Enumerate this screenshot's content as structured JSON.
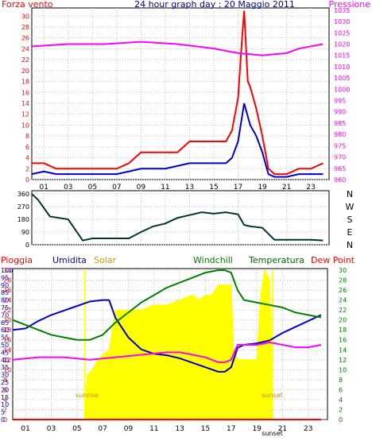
{
  "colors": {
    "wind": "#ff0000",
    "wind_avg": "#0000cc",
    "pressure": "#ff00ff",
    "direction": "#003333",
    "rain": "#ff0000",
    "humidity": "#0000cc",
    "solar": "#ffff00",
    "solar_text": "#cc9900",
    "windchill": "#008000",
    "temperature": "#006600",
    "dewpoint": "#ff00ff",
    "sun_text": "#cc8800",
    "grid": "#c0c0c0",
    "axis": "#000000"
  },
  "chart_data": [
    {
      "type": "line",
      "title": "24 hour graph day : 20 Maggio 2011",
      "left_label": "Forza vento",
      "right_label": "Pressione",
      "x_ticks": [
        "01",
        "03",
        "05",
        "07",
        "09",
        "11",
        "13",
        "15",
        "17",
        "19",
        "21",
        "23"
      ],
      "left_ticks": [
        "0",
        "2",
        "4",
        "6",
        "8",
        "10",
        "12",
        "14",
        "16",
        "18",
        "20",
        "22",
        "24",
        "26",
        "28",
        "30"
      ],
      "right_ticks": [
        "960",
        "965",
        "970",
        "975",
        "980",
        "985",
        "990",
        "995",
        "1000",
        "1005",
        "1010",
        "1015",
        "1020",
        "1025",
        "1030",
        "1035"
      ],
      "xlim": [
        0,
        24.5
      ],
      "ylim_left": [
        0,
        31.5
      ],
      "ylim_right": [
        960,
        1036
      ],
      "grid": true,
      "series": [
        {
          "x": [
            0,
            1,
            2,
            3,
            4,
            5,
            6,
            7,
            8,
            9,
            10,
            11,
            12,
            13,
            14,
            15,
            16,
            16.5,
            17,
            17.3,
            17.5,
            17.8,
            18,
            18.5,
            19,
            19.5,
            20,
            21,
            22,
            23,
            24
          ],
          "y": [
            3,
            3,
            2,
            2,
            2,
            2,
            2,
            2,
            3,
            5,
            5,
            5,
            5,
            7,
            7,
            7,
            7,
            9,
            15,
            25,
            31,
            18,
            17,
            13,
            8,
            2,
            1,
            1,
            2,
            2,
            3
          ]
        },
        {
          "x": [
            0,
            1,
            2,
            3,
            4,
            5,
            6,
            7,
            8,
            9,
            10,
            11,
            12,
            13,
            14,
            15,
            16,
            16.5,
            17,
            17.5,
            18,
            18.5,
            19,
            19.5,
            20,
            21,
            22,
            23,
            24
          ],
          "y": [
            1,
            1.5,
            1,
            1,
            1,
            1,
            1,
            1,
            1.5,
            2,
            2,
            2,
            2.5,
            3,
            3,
            3,
            3,
            4,
            7,
            14,
            10,
            8,
            5,
            1,
            0.5,
            0.5,
            1,
            1,
            1
          ]
        },
        {
          "x": [
            0,
            3,
            6,
            9,
            12,
            15,
            16,
            17,
            18,
            19,
            20,
            21,
            22,
            23,
            24
          ],
          "y": [
            1019,
            1020,
            1020,
            1021,
            1020,
            1018,
            1017,
            1016,
            1015.5,
            1015,
            1015.5,
            1016,
            1018,
            1019,
            1020
          ]
        }
      ]
    },
    {
      "type": "line",
      "right_label": [
        "N",
        "W",
        "S",
        "E",
        "N"
      ],
      "left_ticks": [
        "0",
        "90",
        "180",
        "270",
        "360"
      ],
      "ylim": [
        0,
        360
      ],
      "xlim": [
        0,
        24.5
      ],
      "series": [
        {
          "x": [
            0,
            0.5,
            1.5,
            3,
            3.8,
            4.2,
            5,
            6,
            8,
            9,
            10,
            11,
            12,
            13,
            14,
            15,
            16,
            17,
            17.5,
            18,
            19,
            20,
            21,
            22,
            23,
            24
          ],
          "y": [
            360,
            320,
            200,
            180,
            80,
            30,
            45,
            45,
            45,
            90,
            130,
            150,
            190,
            210,
            230,
            220,
            230,
            215,
            140,
            130,
            120,
            35,
            35,
            35,
            35,
            30
          ]
        }
      ]
    },
    {
      "type": "area",
      "legend": [
        "Pioggia",
        "Umidita",
        "Solar",
        "Windchill",
        "Temperatura",
        "Dew Point"
      ],
      "left_ticks": [
        "0",
        "5",
        "10",
        "15",
        "20",
        "25",
        "30",
        "35",
        "40",
        "45",
        "50",
        "55",
        "60",
        "65",
        "70",
        "75",
        "80",
        "85",
        "90",
        "95",
        "100"
      ],
      "mid_ticks": [
        "0",
        "2",
        "4",
        "6",
        "8",
        "10",
        "12",
        "14",
        "16",
        "18",
        "20",
        "22",
        "24",
        "26",
        "28",
        "30"
      ],
      "right_ticks": [
        "0",
        "2",
        "4",
        "6",
        "8",
        "10",
        "12",
        "14",
        "16",
        "18",
        "20",
        "22",
        "24",
        "26",
        "28",
        "30"
      ],
      "x_ticks": [
        "01",
        "03",
        "05",
        "07",
        "09",
        "11",
        "13",
        "15",
        "17",
        "19",
        "21",
        "23"
      ],
      "xlim": [
        0,
        24.5
      ],
      "ylim_pct": [
        0,
        100
      ],
      "ylim_temp": [
        0,
        30
      ],
      "sunrise_label": "sunrise",
      "sunset_label": "sunset",
      "sunset_tick": "sunset",
      "sunrise_x": 5.6,
      "sunset_x": 20.2,
      "series": [
        {
          "name": "Umidita",
          "x": [
            0,
            1,
            2,
            3,
            4,
            5,
            6,
            7,
            7.5,
            8,
            9,
            10,
            11,
            12,
            13,
            14,
            15,
            16,
            16.5,
            17,
            17.5,
            18,
            19,
            20,
            21,
            22,
            23,
            24
          ],
          "y": [
            60,
            61,
            66,
            70,
            73,
            76,
            79,
            80,
            80,
            68,
            55,
            47,
            44,
            43,
            41,
            38,
            35,
            32,
            32,
            35,
            48,
            50,
            51,
            53,
            58,
            62,
            66,
            70
          ]
        },
        {
          "name": "Windchill",
          "x": [
            0,
            1,
            2,
            3,
            4,
            5,
            6,
            7,
            8,
            9,
            10,
            11,
            12,
            13,
            14,
            15,
            16,
            16.5,
            17,
            17.5,
            18,
            19,
            20,
            21,
            22,
            23,
            24
          ],
          "y": [
            20,
            19,
            18,
            17,
            16.5,
            16,
            16,
            17,
            19.5,
            21.5,
            23.5,
            25,
            26.5,
            27.5,
            28.5,
            29.5,
            30,
            30,
            29.5,
            26,
            24,
            23.5,
            23,
            22.5,
            21.5,
            21,
            20.5
          ]
        },
        {
          "name": "Dew Point",
          "x": [
            0,
            2,
            4,
            6,
            8,
            10,
            12,
            13,
            14,
            15,
            16,
            16.5,
            17,
            17.5,
            18,
            19,
            20,
            21,
            22,
            23,
            24
          ],
          "y": [
            12,
            12.5,
            12.5,
            12,
            12.5,
            13,
            13.5,
            13.5,
            13,
            12.5,
            11.5,
            11.5,
            12,
            15,
            15,
            15,
            15.5,
            15,
            14.5,
            14.5,
            15
          ]
        },
        {
          "name": "Solar",
          "x": [
            5.6,
            5.8,
            6.2,
            6.6,
            7,
            7.5,
            8,
            9,
            10,
            11,
            12,
            13,
            14,
            14.5,
            15,
            15.5,
            16,
            16.5,
            17,
            17.2,
            17.5,
            18,
            18.5,
            19,
            19.3,
            19.6,
            20,
            20.2
          ],
          "y": [
            0,
            9,
            10,
            12,
            13,
            14,
            22,
            22,
            22,
            23,
            23,
            24,
            25,
            24,
            25,
            25,
            27,
            27,
            27,
            14,
            12,
            12,
            12,
            12,
            25,
            30,
            28,
            0
          ]
        },
        {
          "name": "Pioggia",
          "x": [
            0,
            24
          ],
          "y": [
            0,
            0
          ]
        }
      ]
    }
  ]
}
